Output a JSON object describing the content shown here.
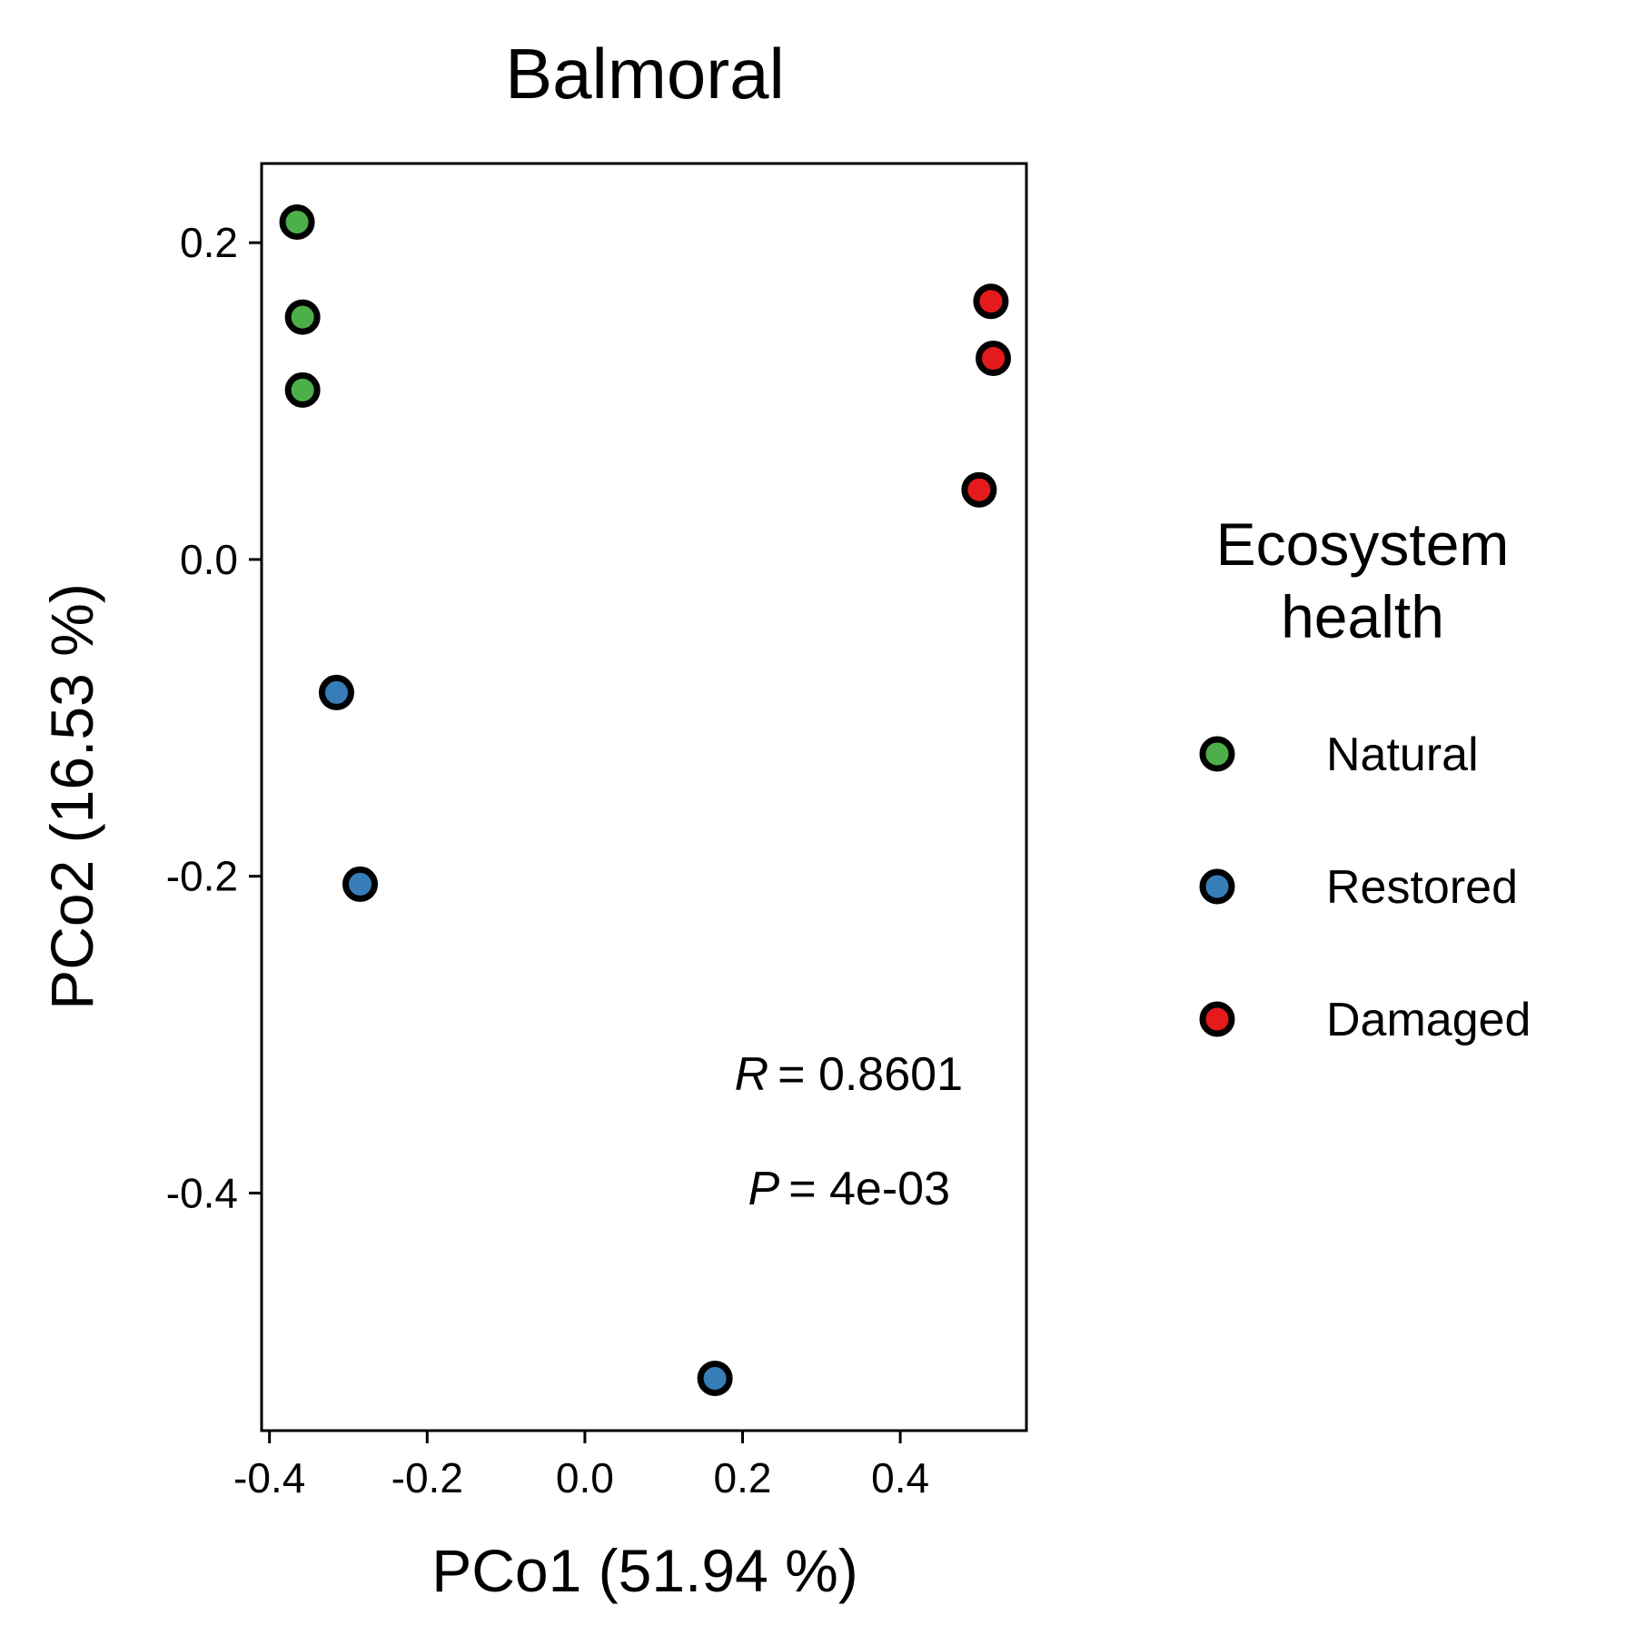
{
  "chart_data": {
    "type": "scatter",
    "title": "Balmoral",
    "xlabel": "PCo1 (51.94 %)",
    "ylabel": "PCo2 (16.53 %)",
    "xlim": [
      -0.41,
      0.56
    ],
    "ylim": [
      -0.55,
      0.25
    ],
    "xticks": [
      -0.4,
      -0.2,
      0.0,
      0.2,
      0.4
    ],
    "xtick_labels": [
      "-0.4",
      "-0.2",
      "0.0",
      "0.2",
      "0.4"
    ],
    "yticks": [
      0.2,
      0.0,
      -0.2,
      -0.4
    ],
    "ytick_labels": [
      "0.2",
      "0.0",
      "-0.2",
      "-0.4"
    ],
    "grid": false,
    "legend": {
      "title_lines": [
        "Ecosystem",
        "health"
      ],
      "placement": "right"
    },
    "series": [
      {
        "name": "Natural",
        "color": "#4daf4a",
        "points": [
          {
            "x": -0.365,
            "y": 0.213
          },
          {
            "x": -0.358,
            "y": 0.153
          },
          {
            "x": -0.358,
            "y": 0.107
          }
        ]
      },
      {
        "name": "Restored",
        "color": "#377eb8",
        "points": [
          {
            "x": -0.315,
            "y": -0.084
          },
          {
            "x": -0.285,
            "y": -0.205
          },
          {
            "x": 0.165,
            "y": -0.517
          }
        ]
      },
      {
        "name": "Damaged",
        "color": "#e41a1c",
        "points": [
          {
            "x": 0.515,
            "y": 0.163
          },
          {
            "x": 0.518,
            "y": 0.127
          },
          {
            "x": 0.5,
            "y": 0.044
          }
        ]
      }
    ],
    "annotations": {
      "r_symbol": "R",
      "r_value": "= 0.8601",
      "p_symbol": "P",
      "p_value": "= 4e-03"
    }
  }
}
